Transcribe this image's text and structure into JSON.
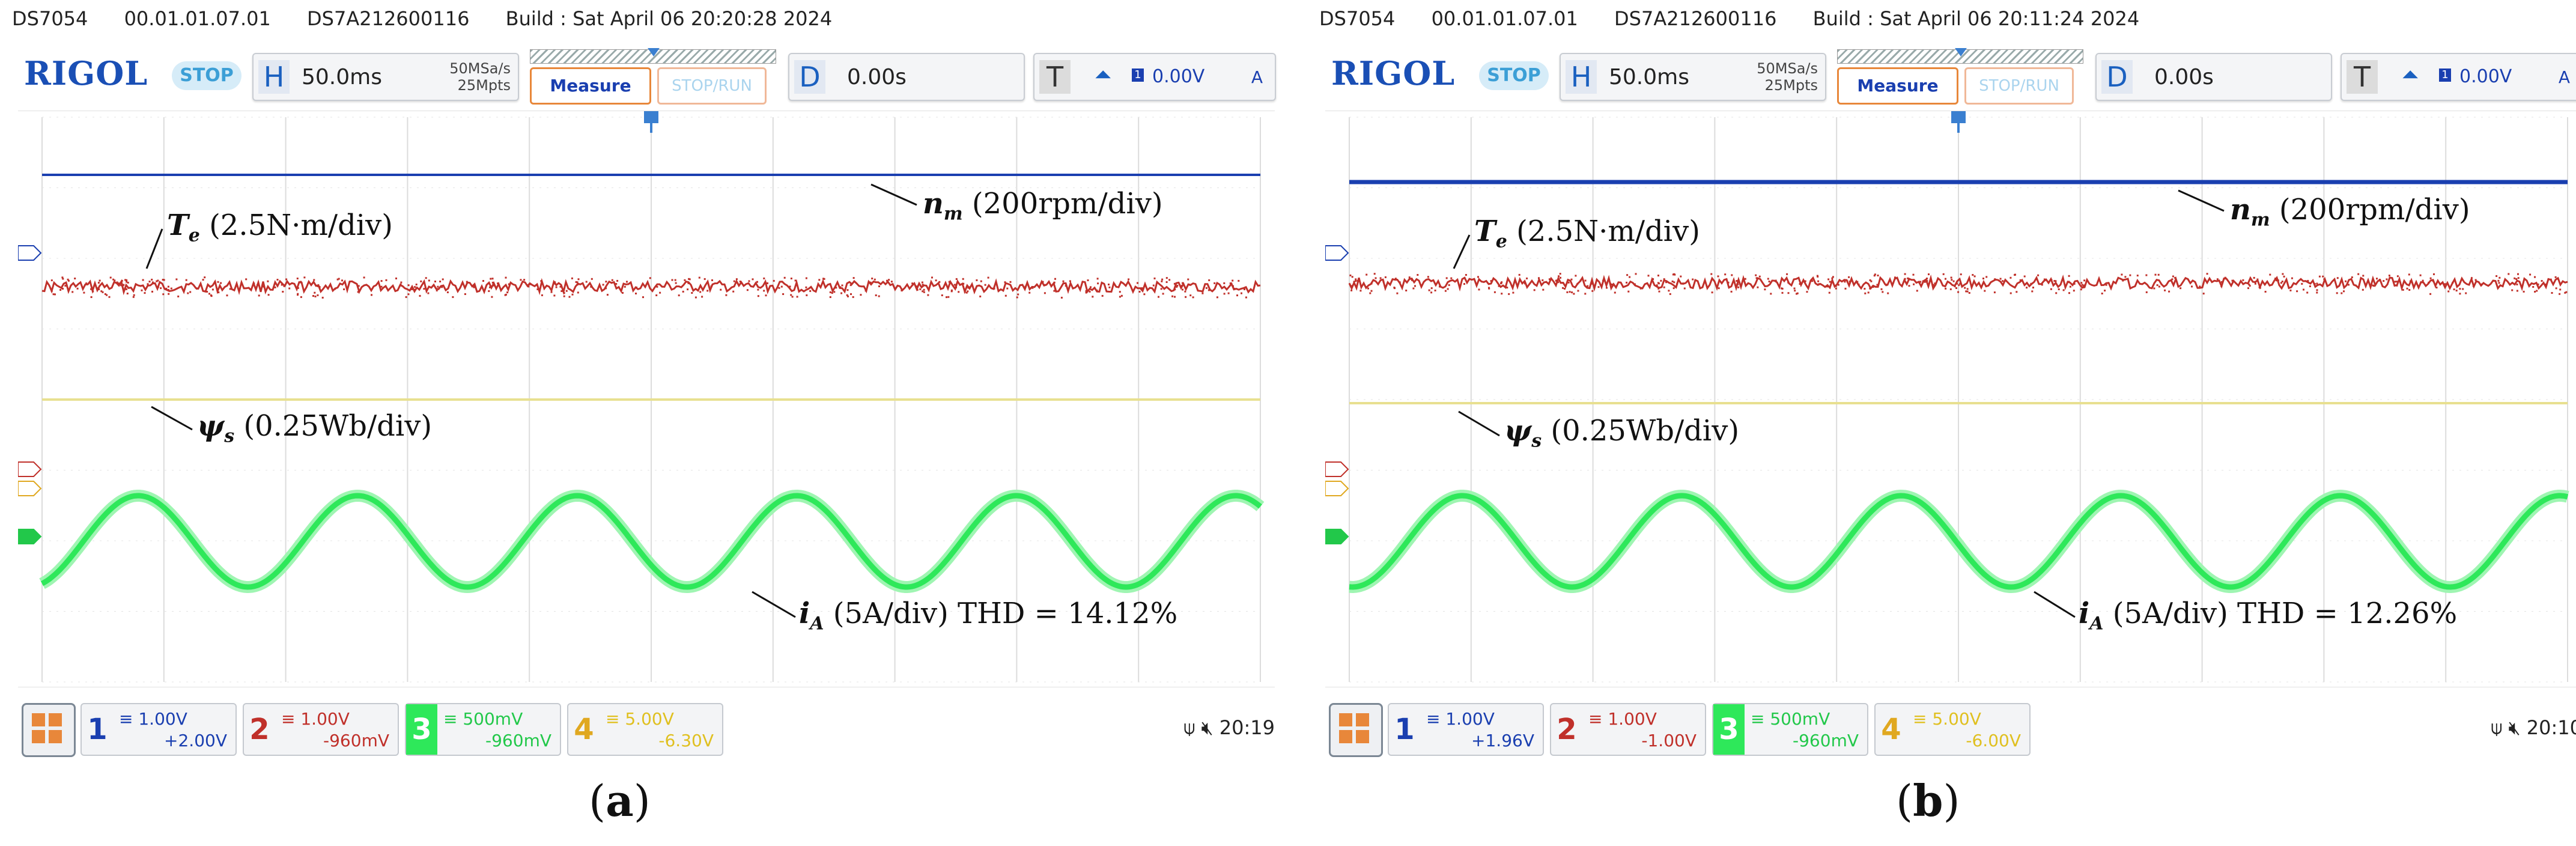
{
  "panels": [
    {
      "id": "a",
      "header": {
        "model": "DS7054",
        "version": "00.01.01.07.01",
        "serial": "DS7A212600116",
        "build": "Build : Sat April 06 20:20:28 2024"
      },
      "toolbar": {
        "logo": "RIGOL",
        "run_state": "STOP",
        "timebase": {
          "letter": "H",
          "value": "50.0ms",
          "sample_rate": "50MSa/s",
          "memory": "25Mpts"
        },
        "measure_label": "Measure",
        "stop_run_label": "STOP/RUN",
        "delay": {
          "letter": "D",
          "value": "0.00s"
        },
        "trigger": {
          "letter": "T",
          "slope_icon": "rising-edge-icon",
          "source": "1",
          "level": "0.00V",
          "mode": "A"
        }
      },
      "annotations": {
        "nm": {
          "symbol": "n",
          "sub": "m",
          "text": " (200rpm/div)"
        },
        "te": {
          "symbol": "T",
          "sub": "e",
          "text": " (2.5N·m/div)"
        },
        "psi": {
          "symbol": "ψ",
          "sub": "s",
          "text": " (0.25Wb/div)"
        },
        "ia": {
          "symbol": "i",
          "sub": "A",
          "text": " (5A/div) THD = 14.12%"
        }
      },
      "channels": [
        {
          "num": "1",
          "scale": "≡ 1.00V",
          "offset": "+2.00V",
          "color": "#1a3fb0"
        },
        {
          "num": "2",
          "scale": "≡ 1.00V",
          "offset": "-960mV",
          "color": "#c0302a"
        },
        {
          "num": "3",
          "scale": "≡ 500mV",
          "offset": "-960mV",
          "color": "#22c84a"
        },
        {
          "num": "4",
          "scale": "≡ 5.00V",
          "offset": "-6.30V",
          "color": "#e0a820"
        }
      ],
      "status": {
        "usb_icon": "usb-icon",
        "mute_icon": "speaker-mute-icon",
        "time": "20:19"
      },
      "caption": "a"
    },
    {
      "id": "b",
      "header": {
        "model": "DS7054",
        "version": "00.01.01.07.01",
        "serial": "DS7A212600116",
        "build": "Build : Sat April 06 20:11:24 2024"
      },
      "toolbar": {
        "logo": "RIGOL",
        "run_state": "STOP",
        "timebase": {
          "letter": "H",
          "value": "50.0ms",
          "sample_rate": "50MSa/s",
          "memory": "25Mpts"
        },
        "measure_label": "Measure",
        "stop_run_label": "STOP/RUN",
        "delay": {
          "letter": "D",
          "value": "0.00s"
        },
        "trigger": {
          "letter": "T",
          "slope_icon": "rising-edge-icon",
          "source": "1",
          "level": "0.00V",
          "mode": "A"
        }
      },
      "annotations": {
        "nm": {
          "symbol": "n",
          "sub": "m",
          "text": " (200rpm/div)"
        },
        "te": {
          "symbol": "T",
          "sub": "e",
          "text": " (2.5N·m/div)"
        },
        "psi": {
          "symbol": "ψ",
          "sub": "s",
          "text": " (0.25Wb/div)"
        },
        "ia": {
          "symbol": "i",
          "sub": "A",
          "text": " (5A/div) THD = 12.26%"
        }
      },
      "channels": [
        {
          "num": "1",
          "scale": "≡ 1.00V",
          "offset": "+1.96V",
          "color": "#1a3fb0"
        },
        {
          "num": "2",
          "scale": "≡ 1.00V",
          "offset": "-1.00V",
          "color": "#c0302a"
        },
        {
          "num": "3",
          "scale": "≡ 500mV",
          "offset": "-960mV",
          "color": "#22c84a"
        },
        {
          "num": "4",
          "scale": "≡ 5.00V",
          "offset": "-6.00V",
          "color": "#e0a820"
        }
      ],
      "status": {
        "usb_icon": "usb-icon",
        "mute_icon": "speaker-mute-icon",
        "time": "20:10"
      },
      "caption": "b"
    }
  ]
}
